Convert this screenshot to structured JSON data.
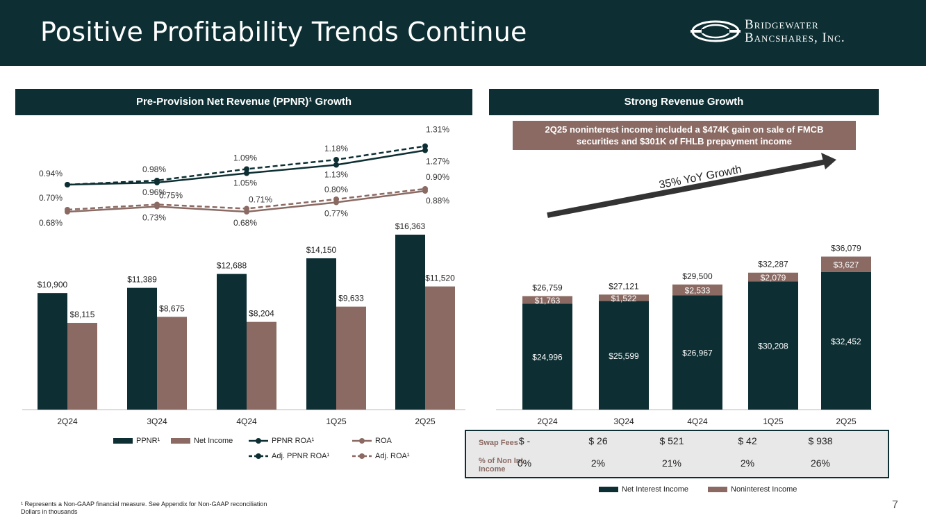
{
  "header": {
    "title": "Positive Profitability Trends Continue",
    "logo_line1": "Bridgewater",
    "logo_line2": "Bancshares, Inc."
  },
  "left_panel": {
    "title": "Pre-Provision Net Revenue (PPNR)¹ Growth"
  },
  "right_panel": {
    "title": "Strong Revenue Growth",
    "callout": "2Q25 noninterest income included a $474K gain on sale of FMCB securities and $301K of FHLB prepayment income",
    "growth_label": "35% YoY Growth"
  },
  "colors": {
    "dark": "#0d2f33",
    "brown": "#8a6a63",
    "light_brown": "#8a6a63"
  },
  "chart_data": [
    {
      "type": "bar",
      "title": "Pre-Provision Net Revenue (PPNR)¹ Growth",
      "categories": [
        "2Q24",
        "3Q24",
        "4Q24",
        "1Q25",
        "2Q25"
      ],
      "series": [
        {
          "name": "PPNR¹",
          "values": [
            10900,
            11389,
            12688,
            14150,
            16363
          ],
          "labels": [
            "$10,900",
            "$11,389",
            "$12,688",
            "$14,150",
            "$16,363"
          ]
        },
        {
          "name": "Net Income",
          "values": [
            8115,
            8675,
            8204,
            9633,
            11520
          ],
          "labels": [
            "$8,115",
            "$8,675",
            "$8,204",
            "$9,633",
            "$11,520"
          ]
        }
      ],
      "lines": [
        {
          "name": "PPNR ROA¹",
          "style": "solid",
          "color": "dark",
          "values": [
            0.94,
            0.96,
            1.05,
            1.13,
            1.27
          ],
          "labels": [
            "0.94%",
            "0.96%",
            "1.05%",
            "1.13%",
            "1.27%"
          ]
        },
        {
          "name": "Adj. PPNR ROA¹",
          "style": "dashed",
          "color": "dark",
          "values": [
            0.94,
            0.98,
            1.09,
            1.18,
            1.31
          ],
          "labels": [
            "",
            "0.98%",
            "1.09%",
            "1.18%",
            "1.31%"
          ]
        },
        {
          "name": "ROA",
          "style": "solid",
          "color": "brown",
          "values": [
            0.68,
            0.73,
            0.68,
            0.77,
            0.88
          ],
          "labels": [
            "0.68%",
            "0.73%",
            "0.68%",
            "0.77%",
            "0.88%"
          ]
        },
        {
          "name": "Adj. ROA¹",
          "style": "dashed",
          "color": "brown",
          "values": [
            0.7,
            0.75,
            0.71,
            0.8,
            0.9
          ],
          "labels": [
            "0.70%",
            "0.75%",
            "0.71%",
            "0.80%",
            "0.90%"
          ]
        }
      ],
      "legend": [
        "PPNR¹",
        "Net Income",
        "PPNR ROA¹",
        "ROA",
        "Adj. PPNR ROA¹",
        "Adj. ROA¹"
      ]
    },
    {
      "type": "bar",
      "stacked": true,
      "title": "Strong Revenue Growth",
      "categories": [
        "2Q24",
        "3Q24",
        "4Q24",
        "1Q25",
        "2Q25"
      ],
      "series": [
        {
          "name": "Net Interest Income",
          "values": [
            24996,
            25599,
            26967,
            30208,
            32452
          ],
          "labels": [
            "$24,996",
            "$25,599",
            "$26,967",
            "$30,208",
            "$32,452"
          ]
        },
        {
          "name": "Noninterest Income",
          "values": [
            1763,
            1522,
            2533,
            2079,
            3627
          ],
          "labels": [
            "$1,763",
            "$1,522",
            "$2,533",
            "$2,079",
            "$3,627"
          ]
        }
      ],
      "totals": [
        26759,
        27121,
        29500,
        32287,
        36079
      ],
      "total_labels": [
        "$26,759",
        "$27,121",
        "$29,500",
        "$32,287",
        "$36,079"
      ],
      "legend": [
        "Net Interest Income",
        "Noninterest Income"
      ]
    }
  ],
  "table": {
    "rows": [
      {
        "label": "Swap Fees",
        "values": [
          "$ -",
          "$ 26",
          "$ 521",
          "$ 42",
          "$ 938"
        ]
      },
      {
        "label": "% of Non Int Income",
        "values": [
          "0%",
          "2%",
          "21%",
          "2%",
          "26%"
        ]
      }
    ]
  },
  "footnote": {
    "line1": "¹ Represents a Non-GAAP financial measure. See Appendix for Non-GAAP reconciliation",
    "line2": "Dollars in thousands"
  },
  "page_number": "7"
}
